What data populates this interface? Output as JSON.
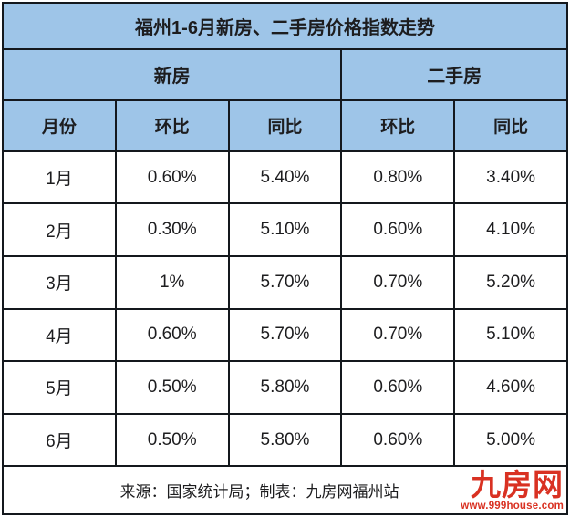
{
  "title": "福州1-6月新房、二手房价格指数走势",
  "table": {
    "group_headers": [
      {
        "label": "新房",
        "span": 3
      },
      {
        "label": "二手房",
        "span": 2
      }
    ],
    "column_headers": [
      "月份",
      "环比",
      "同比",
      "环比",
      "同比"
    ],
    "rows": [
      {
        "cells": [
          "1月",
          "0.60%",
          "5.40%",
          "0.80%",
          "3.40%"
        ]
      },
      {
        "cells": [
          "2月",
          "0.30%",
          "5.10%",
          "0.60%",
          "4.10%"
        ]
      },
      {
        "cells": [
          "3月",
          "1%",
          "5.70%",
          "0.70%",
          "5.20%"
        ]
      },
      {
        "cells": [
          "4月",
          "0.60%",
          "5.70%",
          "0.70%",
          "5.10%"
        ]
      },
      {
        "cells": [
          "5月",
          "0.50%",
          "5.80%",
          "0.60%",
          "4.60%"
        ]
      },
      {
        "cells": [
          "6月",
          "0.50%",
          "5.80%",
          "0.60%",
          "5.00%"
        ]
      }
    ]
  },
  "footer": {
    "source_text": "来源：国家统计局；制表：九房网福州站",
    "logo_text": "九房网",
    "logo_url": "www.999house.com"
  },
  "colors": {
    "header_blue": "#9ec5e8",
    "border": "#14181d",
    "text": "#1d1d1f",
    "logo_red": "#d93122"
  },
  "chart_data": {
    "type": "table",
    "title": "福州1-6月新房、二手房价格指数走势",
    "categories": [
      "1月",
      "2月",
      "3月",
      "4月",
      "5月",
      "6月"
    ],
    "series": [
      {
        "name": "新房环比",
        "values": [
          "0.60%",
          "0.30%",
          "1%",
          "0.60%",
          "0.50%",
          "0.50%"
        ]
      },
      {
        "name": "新房同比",
        "values": [
          "5.40%",
          "5.10%",
          "5.70%",
          "5.70%",
          "5.80%",
          "5.80%"
        ]
      },
      {
        "name": "二手房环比",
        "values": [
          "0.80%",
          "0.60%",
          "0.70%",
          "0.70%",
          "0.60%",
          "0.60%"
        ]
      },
      {
        "name": "二手房同比",
        "values": [
          "3.40%",
          "4.10%",
          "5.20%",
          "5.10%",
          "4.60%",
          "5.00%"
        ]
      }
    ],
    "source": "来源：国家统计局；制表：九房网福州站",
    "legend_position": "none",
    "grid": "full-borders"
  }
}
